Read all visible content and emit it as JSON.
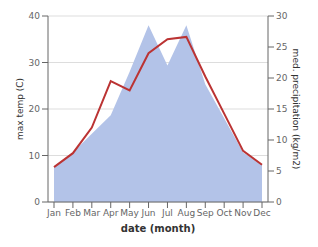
{
  "chart_data": {
    "type": "line",
    "xlabel": "date (month)",
    "ylabel": "max temp (C)",
    "y2label": "med. precipitation (kg/m2)",
    "categories": [
      "Jan",
      "Feb",
      "Mar",
      "Apr",
      "May",
      "Jun",
      "Jul",
      "Aug",
      "Sep",
      "Oct",
      "Nov",
      "Dec"
    ],
    "series": [
      {
        "type": "area",
        "axis": "y2",
        "color": "#b3c3e8",
        "values": [
          5.5,
          8.0,
          11.0,
          14.0,
          21.0,
          28.5,
          22.0,
          28.5,
          19.0,
          13.5,
          8.0,
          6.0
        ]
      },
      {
        "type": "line",
        "color": "#bb3333",
        "values": [
          7.5,
          10.5,
          16.0,
          26.0,
          24.0,
          32.0,
          35.0,
          35.5,
          27.0,
          19.0,
          11.0,
          8.0
        ]
      }
    ],
    "ylim": [
      0,
      40
    ],
    "yticks": [
      0,
      10,
      20,
      30,
      40
    ],
    "y2lim": [
      0,
      30
    ],
    "y2ticks": [
      0,
      5,
      10,
      15,
      20,
      25,
      30
    ],
    "grid": true
  }
}
